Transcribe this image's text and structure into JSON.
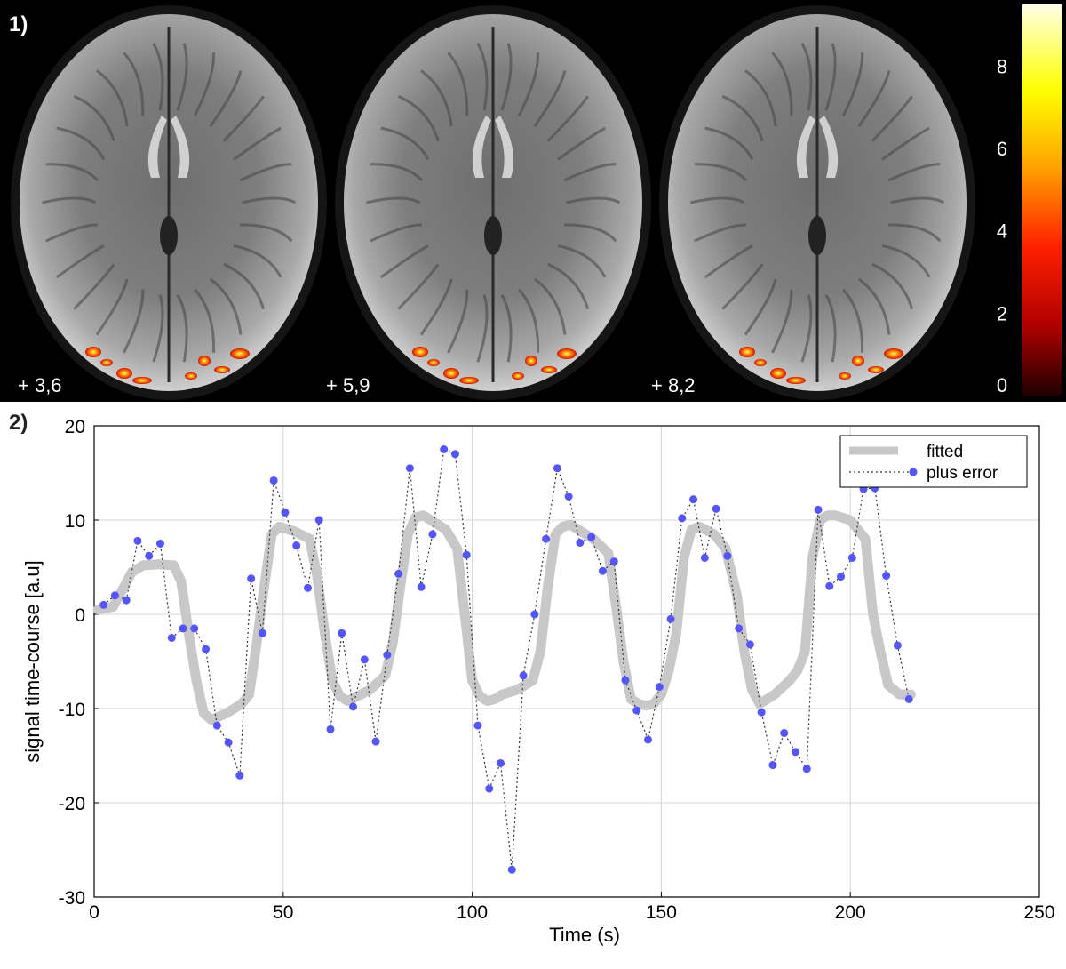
{
  "panel1": {
    "label": "1)",
    "slices": [
      "+ 3,6",
      "+ 5,9",
      "+ 8,2"
    ],
    "colorbar": {
      "ticks": [
        "8",
        "6",
        "4",
        "2",
        "0"
      ],
      "tick_values": [
        8,
        6,
        4,
        2,
        0
      ],
      "range": [
        0,
        9.5
      ],
      "colors": [
        "#ffffe6",
        "#ffff00",
        "#ffa000",
        "#ff2000",
        "#b00000",
        "#200000"
      ]
    }
  },
  "panel2": {
    "label": "2)"
  },
  "chart_data": {
    "type": "line",
    "xlabel": "Time (s)",
    "ylabel": "signal time-course [a.u]",
    "xlim": [
      0,
      250
    ],
    "ylim": [
      -30,
      20
    ],
    "xticks": [
      0,
      50,
      100,
      150,
      200,
      250
    ],
    "yticks": [
      20,
      10,
      0,
      -10,
      -20,
      -30
    ],
    "xtick_labels": [
      "0",
      "50",
      "100",
      "150",
      "200",
      "250"
    ],
    "ytick_labels": [
      "20",
      "10",
      "0",
      "-10",
      "-20",
      "-30"
    ],
    "grid": true,
    "legend": "top-right",
    "series": [
      {
        "name": "fitted",
        "color": "#c8c8c8",
        "style": "thick",
        "x": [
          1,
          5,
          8,
          10,
          13,
          17,
          21,
          23,
          25,
          27,
          29,
          31,
          35,
          39,
          41,
          43,
          45,
          47,
          49,
          53,
          57,
          59,
          61,
          63,
          65,
          67,
          69,
          73,
          77,
          79,
          81,
          83,
          85,
          87,
          89,
          93,
          96,
          98,
          100,
          102,
          104,
          106,
          108,
          112,
          116,
          118,
          120,
          122,
          124,
          126,
          128,
          132,
          136,
          138,
          140,
          142,
          144,
          146,
          148,
          150,
          152,
          154,
          156,
          158,
          160,
          164,
          167,
          170,
          172,
          174,
          176,
          180,
          184,
          186,
          188,
          190,
          192,
          194,
          196,
          200,
          204,
          206,
          208,
          210,
          213,
          216
        ],
        "y": [
          0.5,
          0.8,
          3,
          4.5,
          5.2,
          5.3,
          5.2,
          3.5,
          -2,
          -7,
          -10.5,
          -11.2,
          -10.5,
          -9.5,
          -8.5,
          -3,
          3,
          8.5,
          9.3,
          8.8,
          8,
          4,
          -2,
          -7,
          -8.7,
          -9.2,
          -8.8,
          -8,
          -6.5,
          -3,
          3,
          8.5,
          10.3,
          10.5,
          10,
          9,
          7,
          0,
          -7,
          -8.7,
          -9.2,
          -9,
          -8.5,
          -8,
          -7,
          -4,
          3,
          8.5,
          9.3,
          9.5,
          9,
          8,
          6.5,
          1,
          -5,
          -9,
          -9.5,
          -9.7,
          -9.5,
          -8.5,
          -6,
          -2,
          6,
          9,
          9.3,
          8.5,
          7,
          2,
          -4,
          -8,
          -9.5,
          -8.5,
          -7,
          -6,
          -4,
          6,
          10,
          10.5,
          10.5,
          10,
          8,
          0,
          -4,
          -7.5,
          -8.5,
          -8.5
        ]
      },
      {
        "name": "plus error",
        "color": "#5555ff",
        "style": "dotted-markers",
        "x": [
          2.5,
          5.5,
          8.5,
          11.5,
          14.5,
          17.5,
          20.5,
          23.5,
          26.5,
          29.5,
          32.5,
          35.5,
          38.5,
          41.5,
          44.5,
          47.5,
          50.5,
          53.5,
          56.5,
          59.5,
          62.5,
          65.5,
          68.5,
          71.5,
          74.5,
          77.5,
          80.5,
          83.5,
          86.5,
          89.5,
          92.5,
          95.5,
          98.5,
          101.5,
          104.5,
          107.5,
          110.5,
          113.5,
          116.5,
          119.5,
          122.5,
          125.5,
          128.5,
          131.5,
          134.5,
          137.5,
          140.5,
          143.5,
          146.5,
          149.5,
          152.5,
          155.5,
          158.5,
          161.5,
          164.5,
          167.5,
          170.5,
          173.5,
          176.5,
          179.5,
          182.5,
          185.5,
          188.5,
          191.5,
          194.5,
          197.5,
          200.5,
          203.5,
          206.5,
          209.5,
          212.5,
          215.5
        ],
        "y": [
          1,
          2,
          1.5,
          7.8,
          6.2,
          7.5,
          -2.5,
          -1.5,
          -1.5,
          -3.7,
          -11.8,
          -13.6,
          -17.1,
          3.8,
          -2,
          14.2,
          10.8,
          7.3,
          2.8,
          10,
          -12.2,
          -2,
          -9.8,
          -4.8,
          -13.5,
          -4.3,
          4.3,
          15.5,
          2.9,
          8.5,
          17.5,
          17,
          6.3,
          -11.8,
          -18.5,
          -15.8,
          -27.1,
          -6.5,
          0,
          8,
          15.5,
          12.5,
          7.6,
          8.2,
          4.6,
          5.6,
          -7,
          -10.2,
          -13.3,
          -7.7,
          -0.5,
          10.2,
          12.2,
          6,
          11.2,
          6.2,
          -1.5,
          -3.2,
          -10.4,
          -16,
          -12.6,
          -14.6,
          -16.4,
          11.1,
          3,
          4,
          6,
          13.3,
          13.4,
          4.1,
          -3.3,
          -9
        ]
      }
    ]
  }
}
